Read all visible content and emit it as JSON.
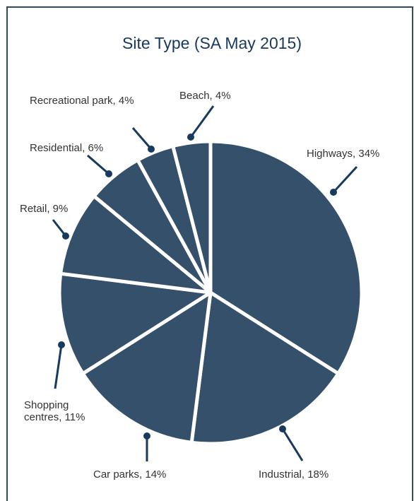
{
  "chart_data": {
    "type": "pie",
    "title": "Site Type (SA May 2015)",
    "slices": [
      {
        "label": "Highways, 34%",
        "value": 34
      },
      {
        "label": "Industrial, 18%",
        "value": 18
      },
      {
        "label": "Car parks, 14%",
        "value": 14
      },
      {
        "label": "Shopping centres, 11%",
        "value": 11
      },
      {
        "label": "Retail, 9%",
        "value": 9
      },
      {
        "label": "Residential, 6%",
        "value": 6
      },
      {
        "label": "Recreational park, 4%",
        "value": 4
      },
      {
        "label": "Beach, 4%",
        "value": 4
      }
    ],
    "slice_color": "#34506a",
    "separator_color": "#ffffff",
    "leader_color": "#173a5e",
    "title_color": "#173a5e",
    "frame_color": "#34495f"
  }
}
